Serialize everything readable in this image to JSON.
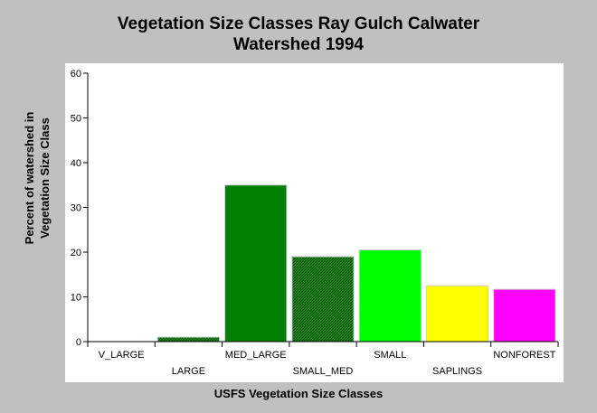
{
  "chart_data": {
    "type": "bar",
    "title_line1": "Vegetation Size Classes Ray Gulch Calwater",
    "title_line2": "Watershed 1994",
    "xlabel": "USFS Vegetation Size Classes",
    "ylabel_line1": "Percent of watershed in",
    "ylabel_line2": "Vegetation Size Class",
    "ylim": [
      0,
      60
    ],
    "yticks": [
      0,
      10,
      20,
      30,
      40,
      50,
      60
    ],
    "categories": [
      "V_LARGE",
      "LARGE",
      "MED_LARGE",
      "SMALL_MED",
      "SMALL",
      "SAPLINGS",
      "NONFOREST"
    ],
    "values": [
      0,
      1,
      35,
      19,
      20.5,
      12.5,
      11.7
    ],
    "colors": [
      "#006400",
      "#006400",
      "#008000",
      "#228b22",
      "#00ff00",
      "#ffff00",
      "#ff00ff"
    ],
    "hatched": [
      false,
      true,
      false,
      true,
      false,
      false,
      false
    ]
  }
}
